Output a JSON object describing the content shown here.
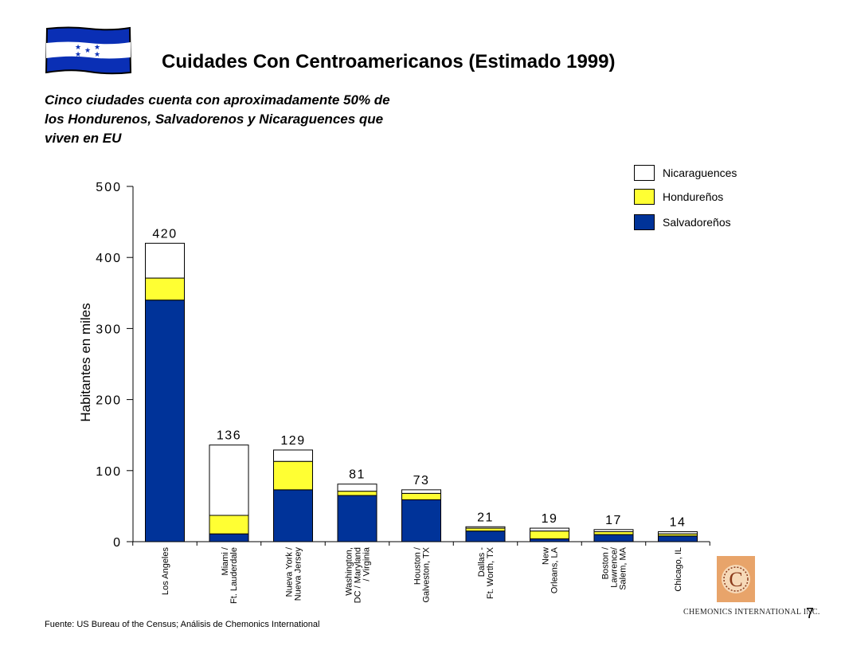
{
  "header": {
    "title": "Cuidades Con Centroamericanos (Estimado 1999)",
    "subtitle_lines": [
      "Cinco ciudades cuenta con aproximadamente 50% de",
      "los Hondurenos, Salvadorenos y Nicaraguences que",
      "viven en EU"
    ]
  },
  "colors": {
    "salvadorenos": "#003399",
    "hondurenos": "#ffff33",
    "nicaraguences": "#ffffff",
    "flag_blue": "#0a2fb5"
  },
  "icons": {
    "flag": "honduras-flag-icon",
    "logo": "chemonics-logo-icon"
  },
  "chart_data": {
    "type": "bar",
    "stacked": true,
    "ylabel": "Habitantes en miles",
    "ylim": [
      0,
      500
    ],
    "yticks": [
      "0",
      "100",
      "200",
      "300",
      "400",
      "500"
    ],
    "categories": [
      "Los Angeles",
      "Miami / Ft. Lauderdale",
      "Nueva York / Nueva Jersey",
      "Washington, DC / Maryland / Virginia",
      "Houston / Galveston, TX",
      "Dallas - Ft. Worth, TX",
      "New Orleans, LA",
      "Boston / Lawrence/ Salem, MA",
      "Chicago, IL"
    ],
    "category_lines": [
      [
        "Los Angeles"
      ],
      [
        "Miami /",
        "Ft. Lauderdale"
      ],
      [
        "Nueva York /",
        "Nueva Jersey"
      ],
      [
        "Washington,",
        "DC / Maryland",
        "/ Virginia"
      ],
      [
        "Houston /",
        "Galveston, TX"
      ],
      [
        "Dallas -",
        "Ft. Worth, TX"
      ],
      [
        "New",
        "Orleans, LA"
      ],
      [
        "Boston /",
        "Lawrence/",
        "Salem, MA"
      ],
      [
        "Chicago, IL"
      ]
    ],
    "series": [
      {
        "name": "Salvadoreños",
        "values": [
          340,
          11,
          73,
          65,
          59,
          15,
          4,
          10,
          8
        ]
      },
      {
        "name": "Hondureños",
        "values": [
          31,
          26,
          40,
          6,
          9,
          4,
          11,
          4,
          3
        ]
      },
      {
        "name": "Nicaraguences",
        "values": [
          49,
          99,
          16,
          10,
          5,
          2,
          4,
          3,
          3
        ]
      }
    ],
    "totals": [
      "420",
      "136",
      "129",
      "81",
      "73",
      "21",
      "19",
      "17",
      "14"
    ],
    "legend": {
      "position": "top-right",
      "entries": [
        "Nicaraguences",
        "Hondureños",
        "Salvadoreños"
      ]
    }
  },
  "footer": {
    "source": "Fuente:   US Bureau  of the Census; Análisis de Chemonics International",
    "page_number": "7",
    "logo_text": "CHEMONICS INTERNATIONAL INC."
  }
}
